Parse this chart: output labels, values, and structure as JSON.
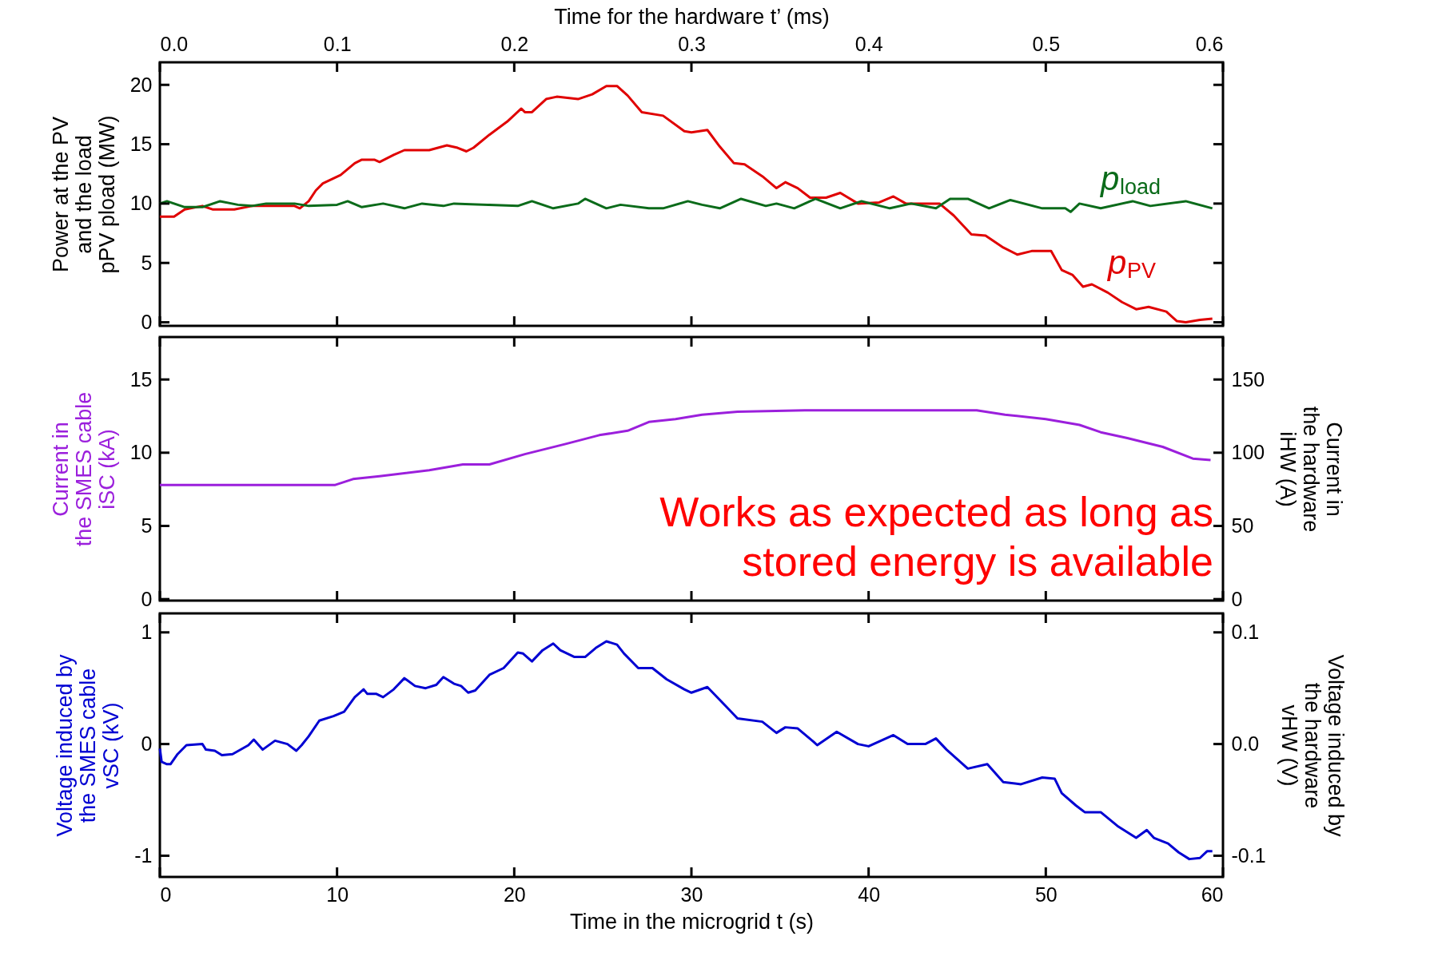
{
  "chart_data": [
    {
      "type": "line",
      "x2label": "Time for the hardware t’ (ms)",
      "ylabel": "Power at the PV\nand the load\npPV pload (MW)",
      "xlim": [
        0,
        60
      ],
      "xticks": [
        0,
        10,
        20,
        30,
        40,
        50,
        60
      ],
      "x2lim": [
        0,
        0.6
      ],
      "x2ticks": [
        {
          "value": 0,
          "label": "0.0"
        },
        {
          "value": 0.1,
          "label": "0.1"
        },
        {
          "value": 0.2,
          "label": "0.2"
        },
        {
          "value": 0.3,
          "label": "0.3"
        },
        {
          "value": 0.4,
          "label": "0.4"
        },
        {
          "value": 0.5,
          "label": "0.5"
        },
        {
          "value": 0.6,
          "label": "0.6"
        }
      ],
      "ylim": [
        -0.3,
        21.9
      ],
      "yticks": [
        0,
        5,
        10,
        15,
        20
      ],
      "tick_labels": "y",
      "series": [
        {
          "name": "p$_{PV}$",
          "color": "#e00000",
          "x": [
            0,
            0.8,
            1.4,
            2.4,
            3.0,
            4.2,
            5.2,
            6.2,
            7.6,
            7.9,
            8.4,
            8.8,
            9.2,
            10.2,
            11.0,
            11.4,
            12.1,
            12.4,
            13.2,
            13.8,
            15.2,
            16.2,
            16.8,
            17.3,
            17.7,
            18.6,
            19.6,
            20.4,
            20.6,
            21.0,
            21.8,
            22.4,
            23.6,
            24.4,
            25.2,
            25.8,
            26.4,
            27.2,
            28.4,
            29.6,
            30.0,
            30.9,
            31.6,
            32.4,
            33.0,
            34.0,
            34.8,
            35.3,
            36.0,
            36.7,
            37.6,
            38.4,
            39.4,
            40.6,
            41.4,
            42.1,
            43.4,
            44.0,
            44.8,
            45.8,
            46.6,
            47.6,
            48.4,
            49.2,
            50.3,
            50.9,
            51.5,
            52.1,
            52.6,
            53.5,
            54.3,
            55.1,
            55.8,
            56.8,
            57.4,
            57.9,
            58.7,
            59.4
          ],
          "values": [
            8.9,
            8.9,
            9.5,
            9.8,
            9.5,
            9.5,
            9.8,
            9.8,
            9.8,
            9.6,
            10.2,
            11.1,
            11.7,
            12.4,
            13.4,
            13.7,
            13.7,
            13.5,
            14.1,
            14.5,
            14.5,
            14.9,
            14.7,
            14.4,
            14.7,
            15.8,
            16.9,
            18.0,
            17.7,
            17.7,
            18.8,
            19.0,
            18.8,
            19.2,
            19.9,
            19.9,
            19.1,
            17.7,
            17.4,
            16.1,
            16.0,
            16.2,
            14.8,
            13.4,
            13.3,
            12.3,
            11.3,
            11.8,
            11.3,
            10.5,
            10.5,
            10.9,
            10.0,
            10.1,
            10.6,
            10.0,
            10.0,
            10.0,
            9.0,
            7.4,
            7.3,
            6.3,
            5.7,
            6.0,
            6.0,
            4.4,
            4.0,
            3.0,
            3.2,
            2.5,
            1.7,
            1.1,
            1.3,
            0.9,
            0.1,
            0.0,
            0.2,
            0.3
          ]
        },
        {
          "name": "p$_{load}$",
          "color": "#0b6b1a",
          "x": [
            0,
            0.4,
            1.4,
            2.4,
            3.4,
            4.4,
            5.2,
            6.0,
            7.6,
            8.4,
            10.0,
            10.6,
            11.4,
            12.6,
            13.8,
            14.8,
            16.0,
            16.6,
            20.2,
            21.0,
            22.2,
            23.6,
            24.0,
            25.2,
            26.0,
            27.6,
            28.4,
            29.8,
            30.6,
            31.6,
            32.8,
            34.2,
            34.8,
            35.8,
            37.0,
            38.4,
            39.6,
            41.2,
            42.4,
            43.8,
            44.6,
            45.6,
            46.8,
            48.0,
            49.8,
            51.1,
            51.4,
            51.9,
            53.1,
            54.9,
            55.9,
            57.9,
            59.4
          ],
          "values": [
            10.0,
            10.2,
            9.7,
            9.7,
            10.2,
            9.9,
            9.8,
            10.0,
            10.0,
            9.8,
            9.9,
            10.2,
            9.7,
            10.0,
            9.6,
            10.0,
            9.8,
            10.0,
            9.8,
            10.2,
            9.6,
            10.0,
            10.4,
            9.6,
            9.9,
            9.6,
            9.6,
            10.2,
            9.9,
            9.6,
            10.4,
            9.8,
            10.0,
            9.6,
            10.4,
            9.6,
            10.2,
            9.6,
            10.0,
            9.6,
            10.4,
            10.4,
            9.6,
            10.3,
            9.6,
            9.6,
            9.3,
            10.0,
            9.6,
            10.2,
            9.8,
            10.2,
            9.6
          ]
        }
      ]
    },
    {
      "type": "line",
      "ylabel": "Current in\nthe SMES cable\niSC (kA)",
      "y2label": "Current in\nthe hardware\niHW (A)",
      "xlim": [
        0,
        60
      ],
      "xticks": [
        0,
        10,
        20,
        30,
        40,
        50,
        60
      ],
      "ylim": [
        -0.1,
        17.9
      ],
      "yticks": [
        0,
        5,
        10,
        15
      ],
      "y2lim": [
        -1,
        179
      ],
      "y2ticks": [
        0,
        50,
        100,
        150
      ],
      "tick_labels": "y",
      "annotations": [
        "Works as expected as long as\nstored energy is available"
      ],
      "series": [
        {
          "color": "#9b1fdc",
          "x": [
            0,
            9.9,
            10.9,
            12.4,
            15.2,
            17.1,
            18.6,
            20.6,
            22.9,
            24.8,
            26.4,
            27.6,
            29.1,
            30.6,
            32.6,
            36.4,
            41.5,
            46.1,
            47.7,
            50.0,
            51.9,
            53.1,
            54.6,
            56.6,
            58.3,
            59.3
          ],
          "values": [
            7.8,
            7.8,
            8.2,
            8.4,
            8.8,
            9.2,
            9.2,
            9.9,
            10.6,
            11.2,
            11.5,
            12.1,
            12.3,
            12.6,
            12.8,
            12.9,
            12.9,
            12.9,
            12.6,
            12.3,
            11.9,
            11.4,
            11.0,
            10.4,
            9.6,
            9.5
          ]
        }
      ]
    },
    {
      "type": "line",
      "xlabel": "Time in the microgrid t (s)",
      "ylabel": "Voltage induced by\nthe SMES cable\nvSC (kV)",
      "y2label": "Voltage induced by\nthe hardware\nvHW (V)",
      "xlim": [
        0,
        60
      ],
      "xticks": [
        0,
        10,
        20,
        30,
        40,
        50,
        60
      ],
      "ylim": [
        -1.19,
        1.17
      ],
      "yticks": [
        {
          "value": -1,
          "label": "-1"
        },
        0,
        1
      ],
      "y2lim": [
        -0.119,
        0.117
      ],
      "y2ticks": [
        {
          "value": -0.1,
          "label": "-0.1"
        },
        {
          "value": 0,
          "label": "0.0"
        },
        {
          "value": 0.1,
          "label": "0.1"
        }
      ],
      "series": [
        {
          "color": "#0000d2",
          "x": [
            0,
            0.1,
            0.4,
            0.6,
            1.0,
            1.5,
            2.4,
            2.6,
            3.1,
            3.5,
            4.1,
            5.0,
            5.3,
            5.8,
            6.5,
            7.2,
            7.7,
            8.0,
            8.4,
            9.0,
            9.8,
            10.4,
            11.0,
            11.5,
            11.7,
            12.2,
            12.6,
            13.2,
            13.8,
            14.4,
            15.0,
            15.6,
            16.0,
            16.6,
            17.0,
            17.4,
            17.8,
            18.6,
            19.4,
            20.2,
            20.5,
            21.0,
            21.6,
            22.2,
            22.6,
            23.4,
            24.0,
            24.6,
            25.2,
            25.8,
            26.2,
            27.0,
            27.8,
            28.6,
            29.6,
            30.0,
            30.9,
            32.0,
            32.6,
            34.0,
            34.8,
            35.3,
            36.0,
            36.9,
            37.1,
            38.2,
            39.4,
            40.0,
            41.4,
            42.2,
            43.2,
            43.8,
            44.4,
            45.6,
            46.7,
            47.6,
            48.6,
            49.8,
            50.5,
            50.9,
            51.7,
            52.2,
            53.1,
            54.1,
            55.1,
            55.7,
            56.1,
            56.9,
            57.5,
            58.1,
            58.7,
            59.1,
            59.4
          ],
          "values": [
            -0.04,
            -0.16,
            -0.18,
            -0.18,
            -0.09,
            -0.01,
            0.0,
            -0.05,
            -0.06,
            -0.1,
            -0.09,
            -0.01,
            0.04,
            -0.05,
            0.03,
            0.0,
            -0.06,
            -0.01,
            0.07,
            0.21,
            0.25,
            0.29,
            0.42,
            0.49,
            0.45,
            0.45,
            0.42,
            0.49,
            0.59,
            0.52,
            0.5,
            0.53,
            0.6,
            0.54,
            0.52,
            0.46,
            0.48,
            0.62,
            0.68,
            0.82,
            0.81,
            0.74,
            0.84,
            0.9,
            0.84,
            0.78,
            0.78,
            0.86,
            0.92,
            0.89,
            0.81,
            0.68,
            0.68,
            0.58,
            0.49,
            0.46,
            0.51,
            0.33,
            0.23,
            0.2,
            0.1,
            0.15,
            0.14,
            0.02,
            -0.01,
            0.11,
            0.0,
            -0.02,
            0.08,
            0.0,
            0.0,
            0.05,
            -0.05,
            -0.22,
            -0.18,
            -0.34,
            -0.36,
            -0.3,
            -0.31,
            -0.44,
            -0.55,
            -0.61,
            -0.61,
            -0.74,
            -0.84,
            -0.77,
            -0.84,
            -0.89,
            -0.97,
            -1.03,
            -1.02,
            -0.96,
            -0.96
          ]
        }
      ]
    }
  ]
}
